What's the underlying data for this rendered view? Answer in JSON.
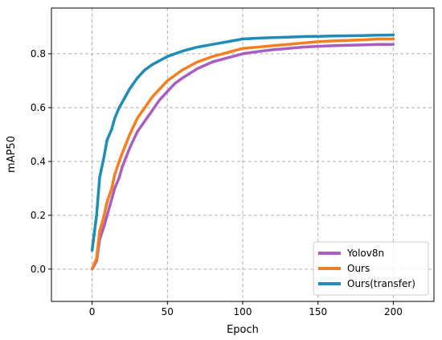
{
  "chart_data": {
    "type": "line",
    "title": "",
    "xlabel": "Epoch",
    "ylabel": "mAP50",
    "xlim": [
      -27,
      227
    ],
    "ylim": [
      -0.12,
      0.97
    ],
    "xticks": [
      0,
      50,
      100,
      150,
      200
    ],
    "yticks": [
      0.0,
      0.2,
      0.4,
      0.6,
      0.8
    ],
    "grid": true,
    "legend_position": "lower-right",
    "series": [
      {
        "name": "Yolov8n",
        "color": "#a95dbf",
        "x": [
          0,
          3,
          5,
          8,
          10,
          13,
          15,
          18,
          20,
          25,
          30,
          35,
          40,
          45,
          50,
          55,
          60,
          70,
          80,
          90,
          100,
          110,
          120,
          130,
          140,
          150,
          160,
          170,
          180,
          190,
          200
        ],
        "y": [
          0.0,
          0.03,
          0.11,
          0.16,
          0.2,
          0.26,
          0.3,
          0.34,
          0.38,
          0.45,
          0.51,
          0.55,
          0.59,
          0.63,
          0.66,
          0.69,
          0.71,
          0.745,
          0.77,
          0.785,
          0.8,
          0.808,
          0.815,
          0.82,
          0.825,
          0.828,
          0.83,
          0.832,
          0.833,
          0.835,
          0.835
        ]
      },
      {
        "name": "Ours",
        "color": "#f47f20",
        "x": [
          0,
          3,
          5,
          8,
          10,
          13,
          15,
          18,
          20,
          25,
          30,
          35,
          40,
          45,
          50,
          55,
          60,
          70,
          80,
          90,
          100,
          110,
          120,
          130,
          140,
          150,
          160,
          170,
          180,
          190,
          200
        ],
        "y": [
          0.0,
          0.04,
          0.14,
          0.2,
          0.25,
          0.3,
          0.35,
          0.4,
          0.43,
          0.5,
          0.56,
          0.6,
          0.64,
          0.67,
          0.7,
          0.72,
          0.74,
          0.77,
          0.79,
          0.805,
          0.82,
          0.825,
          0.83,
          0.835,
          0.84,
          0.845,
          0.848,
          0.85,
          0.852,
          0.855,
          0.855
        ]
      },
      {
        "name": "Ours(transfer)",
        "color": "#1f8db5",
        "x": [
          0,
          3,
          5,
          8,
          10,
          13,
          15,
          18,
          20,
          25,
          30,
          35,
          40,
          45,
          50,
          55,
          60,
          70,
          80,
          90,
          100,
          110,
          120,
          130,
          140,
          150,
          160,
          170,
          180,
          190,
          200
        ],
        "y": [
          0.07,
          0.2,
          0.34,
          0.42,
          0.48,
          0.52,
          0.56,
          0.6,
          0.62,
          0.67,
          0.71,
          0.74,
          0.76,
          0.775,
          0.79,
          0.8,
          0.81,
          0.825,
          0.835,
          0.845,
          0.855,
          0.858,
          0.86,
          0.862,
          0.864,
          0.865,
          0.866,
          0.867,
          0.868,
          0.869,
          0.87
        ]
      }
    ]
  }
}
